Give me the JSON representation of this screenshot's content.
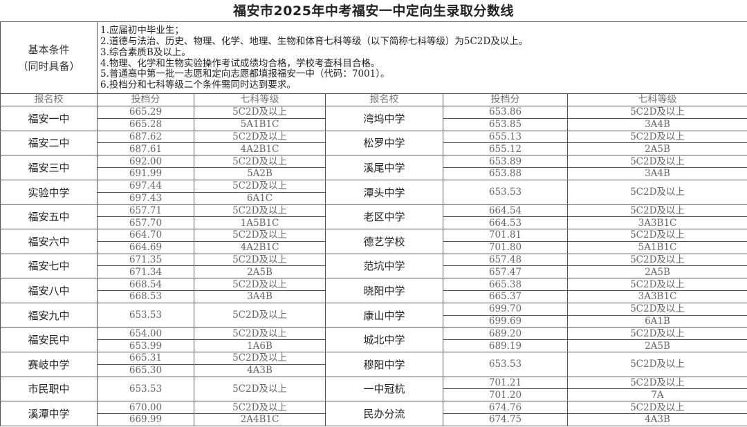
{
  "title": "福安市2025年中考福安一中定向生录取分数线",
  "conditions": {
    "label_line1": "基本条件",
    "label_line2": "（同时具备）",
    "items": [
      "1.应届初中毕业生；",
      "2.道德与法治、历史、物理、化学、地理、生物和体育七科等级（以下简称七科等级）为5C2D及以上。",
      "3.综合素质B及以上。",
      "4.物理、化学和生物实验操作考试成绩均合格，学校考查科目合格。",
      "5.普通高中第一批一志愿和定向志愿都填报福安一中（代码：7001）。",
      "6.投档分和七科等级二个条件需同时达到要求。"
    ]
  },
  "headers": [
    "报名校",
    "投档分",
    "七科等级",
    "报名校",
    "投档分",
    "七科等级"
  ],
  "left_schools": [
    {
      "name": "福安一中",
      "rows": [
        {
          "score": "665.29",
          "grade": "5C2D及以上"
        },
        {
          "score": "665.28",
          "grade": "5A1B1C"
        }
      ]
    },
    {
      "name": "福安二中",
      "rows": [
        {
          "score": "687.62",
          "grade": "5C2D及以上"
        },
        {
          "score": "687.61",
          "grade": "4A2B1C"
        }
      ]
    },
    {
      "name": "福安三中",
      "rows": [
        {
          "score": "692.00",
          "grade": "5C2D及以上"
        },
        {
          "score": "691.99",
          "grade": "5A2B"
        }
      ]
    },
    {
      "name": "实验中学",
      "rows": [
        {
          "score": "697.44",
          "grade": "5C2D及以上"
        },
        {
          "score": "697.43",
          "grade": "6A1C"
        }
      ]
    },
    {
      "name": "福安五中",
      "rows": [
        {
          "score": "657.71",
          "grade": "5C2D及以上"
        },
        {
          "score": "657.70",
          "grade": "1A5B1C"
        }
      ]
    },
    {
      "name": "福安六中",
      "rows": [
        {
          "score": "664.70",
          "grade": "5C2D及以上"
        },
        {
          "score": "664.69",
          "grade": "4A2B1C"
        }
      ]
    },
    {
      "name": "福安七中",
      "rows": [
        {
          "score": "671.35",
          "grade": "5C2D及以上"
        },
        {
          "score": "671.34",
          "grade": "2A5B"
        }
      ]
    },
    {
      "name": "福安八中",
      "rows": [
        {
          "score": "668.54",
          "grade": "5C2D及以上"
        },
        {
          "score": "668.53",
          "grade": "3A4B"
        }
      ]
    },
    {
      "name": "福安九中",
      "rows": [
        {
          "score": "653.53",
          "grade": "5C2D及以上"
        }
      ]
    },
    {
      "name": "福安民中",
      "rows": [
        {
          "score": "654.00",
          "grade": "5C2D及以上"
        },
        {
          "score": "653.99",
          "grade": "1A6B"
        }
      ]
    },
    {
      "name": "赛岐中学",
      "rows": [
        {
          "score": "665.31",
          "grade": "5C2D及以上"
        },
        {
          "score": "665.30",
          "grade": "4A3B"
        }
      ]
    },
    {
      "name": "市民职中",
      "rows": [
        {
          "score": "653.53",
          "grade": "5C2D及以上"
        }
      ]
    },
    {
      "name": "溪潭中学",
      "rows": [
        {
          "score": "670.00",
          "grade": "5C2D及以上"
        },
        {
          "score": "669.99",
          "grade": "2A4B1C"
        }
      ]
    }
  ],
  "right_schools": [
    {
      "name": "湾坞中学",
      "rows": [
        {
          "score": "653.86",
          "grade": "5C2D及以上"
        },
        {
          "score": "653.85",
          "grade": "3A4B"
        }
      ]
    },
    {
      "name": "松罗中学",
      "rows": [
        {
          "score": "655.13",
          "grade": "5C2D及以上"
        },
        {
          "score": "655.12",
          "grade": "2A5B"
        }
      ]
    },
    {
      "name": "溪尾中学",
      "rows": [
        {
          "score": "653.89",
          "grade": "5C2D及以上"
        },
        {
          "score": "653.88",
          "grade": "3A4B"
        }
      ]
    },
    {
      "name": "潭头中学",
      "rows": [
        {
          "score": "653.53",
          "grade": "5C2D及以上"
        }
      ]
    },
    {
      "name": "老区中学",
      "rows": [
        {
          "score": "664.54",
          "grade": "5C2D及以上"
        },
        {
          "score": "664.53",
          "grade": "3A3B1C"
        }
      ]
    },
    {
      "name": "德艺学校",
      "rows": [
        {
          "score": "701.81",
          "grade": "5C2D及以上"
        },
        {
          "score": "701.80",
          "grade": "5A1B1C"
        }
      ]
    },
    {
      "name": "范坑中学",
      "rows": [
        {
          "score": "657.48",
          "grade": "5C2D及以上"
        },
        {
          "score": "657.47",
          "grade": "2A5B"
        }
      ]
    },
    {
      "name": "晓阳中学",
      "rows": [
        {
          "score": "665.38",
          "grade": "5C2D及以上"
        },
        {
          "score": "665.37",
          "grade": "3A3B1C"
        }
      ]
    },
    {
      "name": "康山中学",
      "rows": [
        {
          "score": "699.70",
          "grade": "5C2D及以上"
        },
        {
          "score": "699.69",
          "grade": "6A1B"
        }
      ]
    },
    {
      "name": "城北中学",
      "rows": [
        {
          "score": "689.20",
          "grade": "5C2D及以上"
        },
        {
          "score": "689.19",
          "grade": "2A5B"
        }
      ]
    },
    {
      "name": "穆阳中学",
      "rows": [
        {
          "score": "653.53",
          "grade": "5C2D及以上"
        }
      ]
    },
    {
      "name": "一中冠杭",
      "rows": [
        {
          "score": "701.21",
          "grade": "5C2D及以上"
        },
        {
          "score": "701.20",
          "grade": "7A"
        }
      ]
    },
    {
      "name": "民办分流",
      "rows": [
        {
          "score": "674.76",
          "grade": "5C2D及以上"
        },
        {
          "score": "674.75",
          "grade": "4A3B"
        }
      ]
    }
  ]
}
